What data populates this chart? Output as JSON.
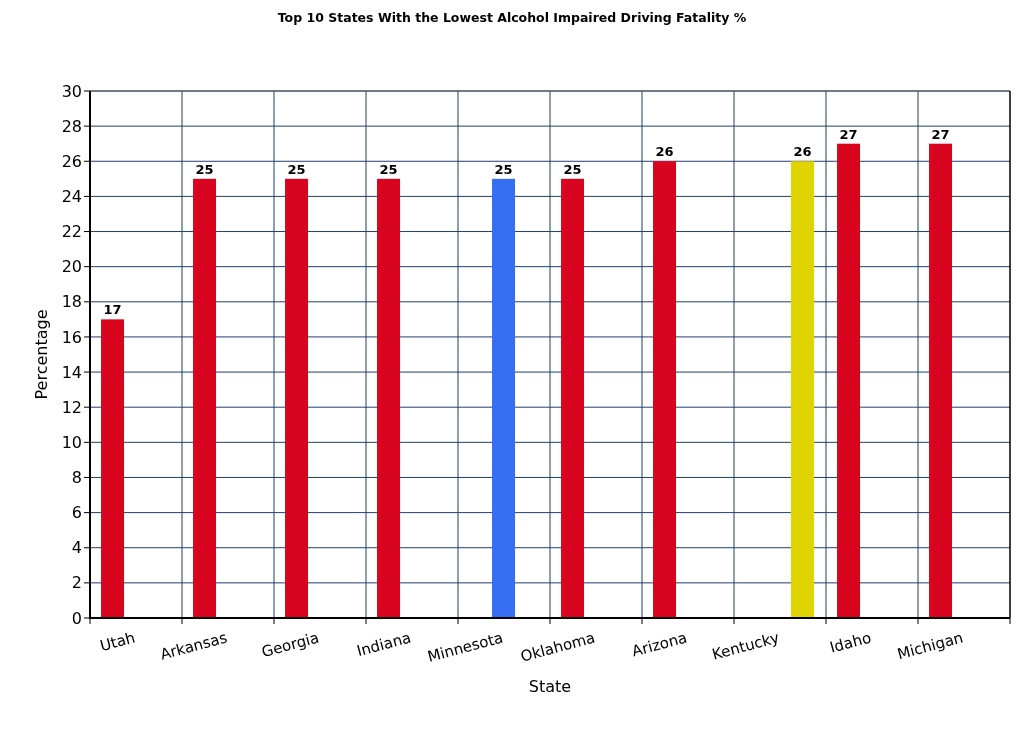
{
  "chart_data": {
    "type": "bar",
    "title": "Top 10 States With the Lowest Alcohol Impaired Driving Fatality %",
    "xlabel": "State",
    "ylabel": "Percentage",
    "categories": [
      "Utah",
      "Arkansas",
      "Georgia",
      "Indiana",
      "Minnesota",
      "Oklahoma",
      "Arizona",
      "Kentucky",
      "Idaho",
      "Michigan"
    ],
    "series": [
      {
        "color": "#d9041e",
        "values": [
          17,
          25,
          25,
          25,
          null,
          25,
          26,
          null,
          27,
          27
        ]
      },
      {
        "color": "#356ef0",
        "values": [
          null,
          null,
          null,
          null,
          25,
          null,
          null,
          null,
          null,
          null
        ]
      },
      {
        "color": "#e0d400",
        "values": [
          null,
          null,
          null,
          null,
          null,
          null,
          null,
          26,
          null,
          null
        ]
      }
    ],
    "ylim": [
      0,
      30
    ],
    "yticks": [
      0,
      2,
      4,
      6,
      8,
      10,
      12,
      14,
      16,
      18,
      20,
      22,
      24,
      26,
      28,
      30
    ],
    "grid": true,
    "data_labels": true
  }
}
